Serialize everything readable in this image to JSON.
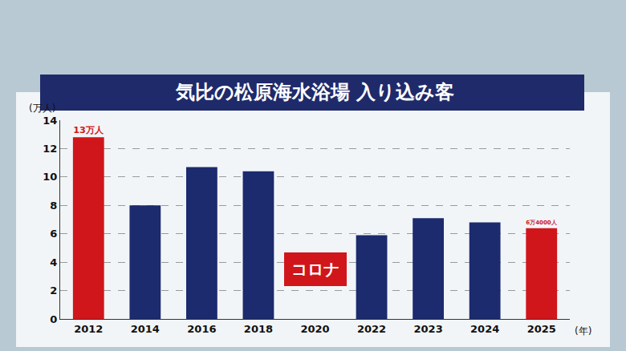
{
  "chart_data": {
    "type": "bar",
    "title": "気比の松原海水浴場 入り込み客",
    "y_label": "(万人)",
    "x_label": "(年)",
    "categories": [
      "2012",
      "2014",
      "2016",
      "2018",
      "2020",
      "2022",
      "2023",
      "2024",
      "2025"
    ],
    "values": [
      12.8,
      8.0,
      10.7,
      10.4,
      null,
      5.9,
      7.1,
      6.8,
      6.4
    ],
    "value_labels": [
      "13万人",
      null,
      null,
      null,
      null,
      null,
      null,
      null,
      "6万4000人"
    ],
    "colors": [
      "#d0161b",
      "#1c2a6e",
      "#1c2a6e",
      "#1c2a6e",
      "#1c2a6e",
      "#1c2a6e",
      "#1c2a6e",
      "#1c2a6e",
      "#d0161b"
    ],
    "ylim": [
      0,
      14
    ],
    "yticks": [
      0,
      2,
      4,
      6,
      8,
      10,
      12,
      14
    ],
    "grid": true,
    "data_labels": true,
    "annotations": [
      {
        "category": "2020",
        "text": "コロナ"
      }
    ]
  }
}
